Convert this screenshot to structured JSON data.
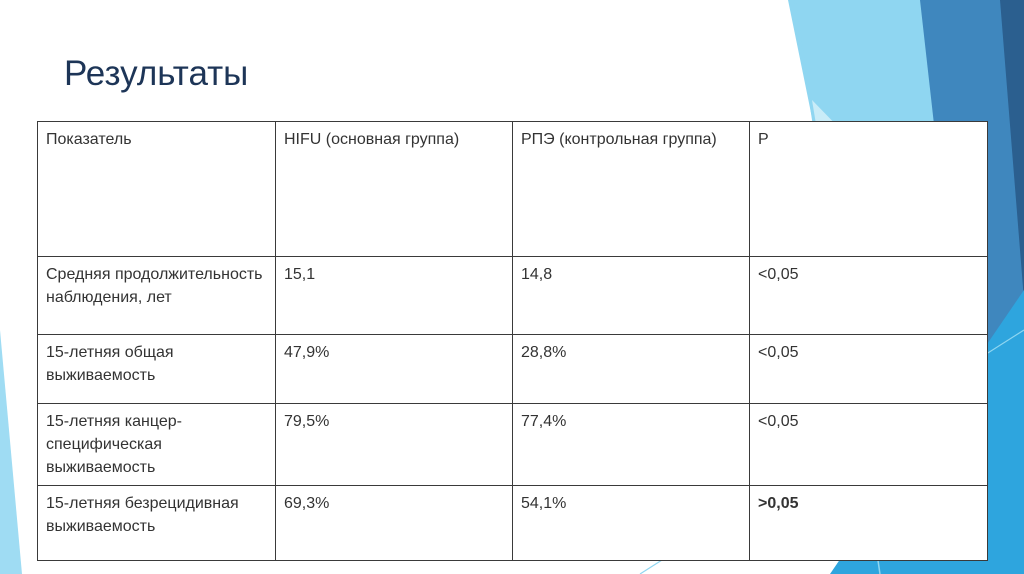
{
  "header": {
    "title": "Результаты"
  },
  "table": {
    "columns": [
      "Показатель",
      "HIFU (основная группа)",
      "РПЭ (контрольная группа)",
      "P"
    ],
    "rows": [
      [
        "Средняя продолжительность наблюдения, лет",
        "15,1",
        "14,8",
        "<0,05"
      ],
      [
        "15-летняя общая выживаемость",
        "47,9%",
        "28,8%",
        "<0,05"
      ],
      [
        "15-летняя канцер-специфическая выживаемость",
        "79,5%",
        "77,4%",
        "<0,05"
      ],
      [
        "15-летняя безрецидивная выживаемость",
        "69,3%",
        "54,1%",
        ">0,05"
      ]
    ]
  }
}
